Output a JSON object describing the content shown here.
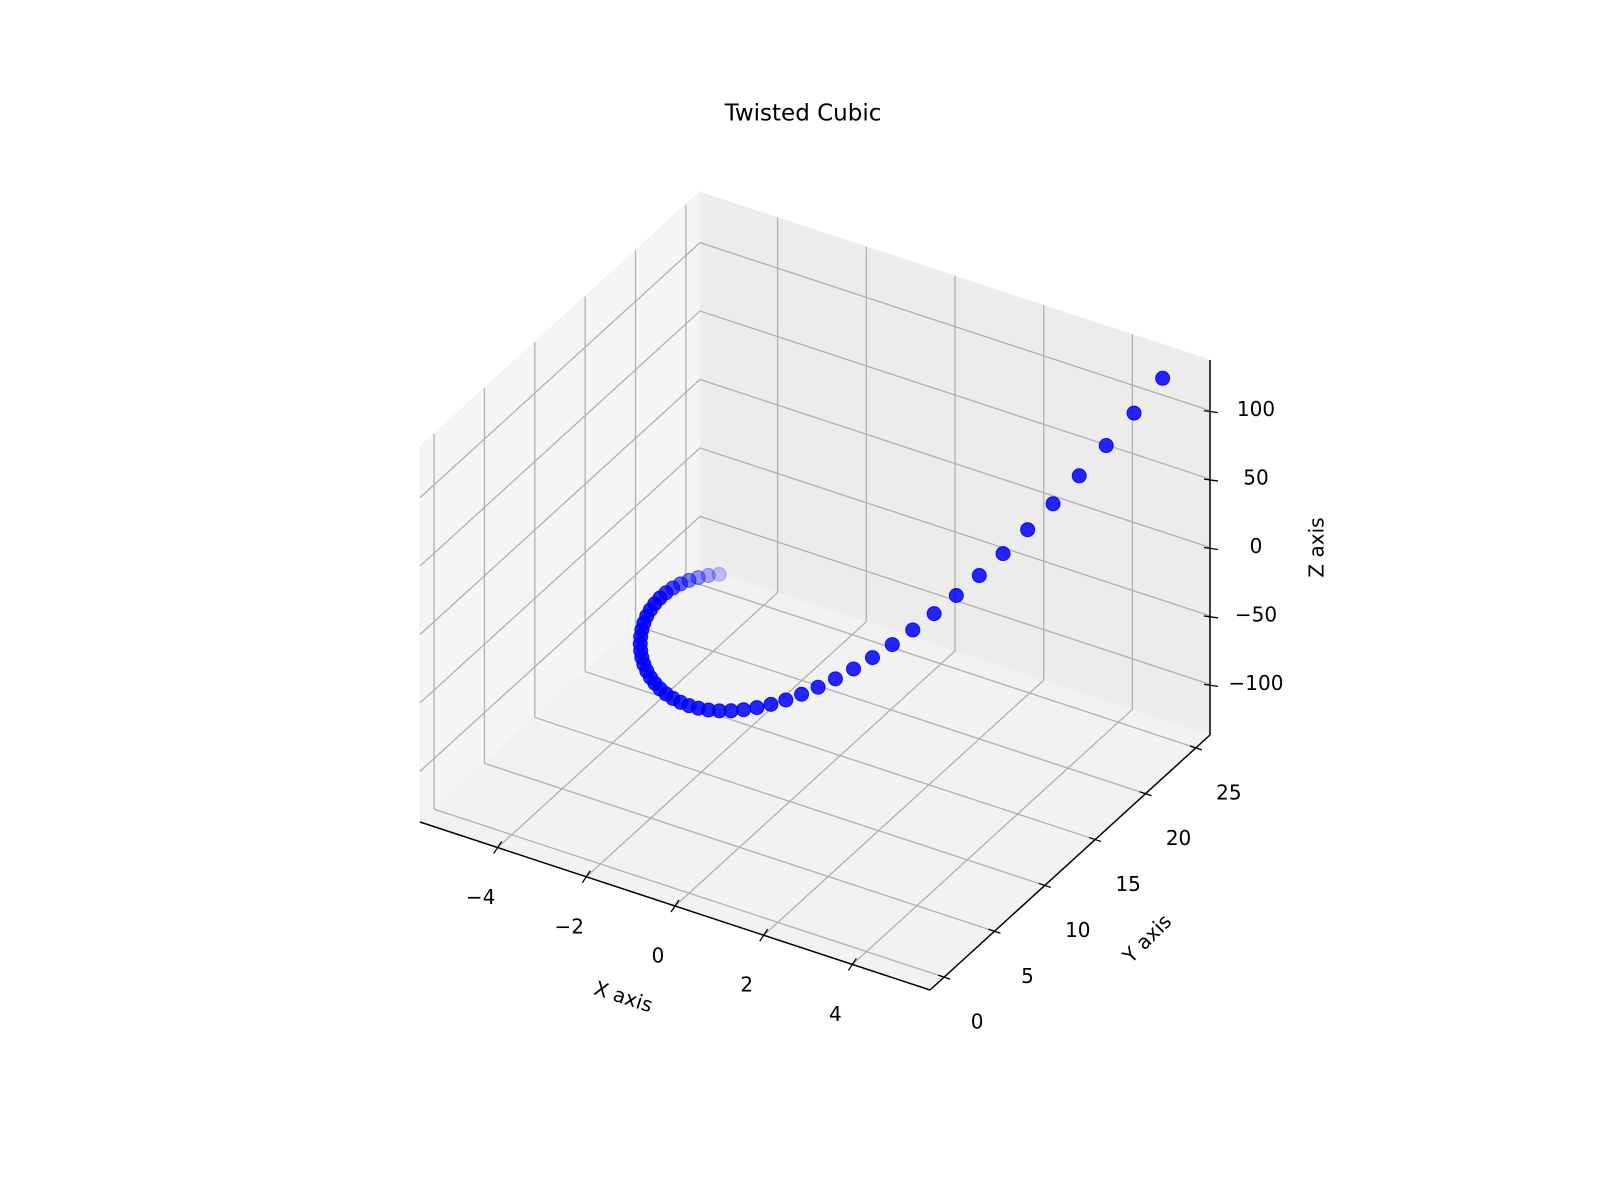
{
  "chart_data": {
    "type": "scatter3d",
    "title": "Twisted Cubic",
    "xlabel": "X axis",
    "ylabel": "Y axis",
    "zlabel": "Z axis",
    "series": [
      {
        "color": "#0000ff",
        "x": [
          -5,
          -4.8,
          -4.6,
          -4.4,
          -4.2,
          -4,
          -3.8,
          -3.6,
          -3.4,
          -3.2,
          -3,
          -2.8,
          -2.6,
          -2.4,
          -2.2,
          -2,
          -1.8,
          -1.6,
          -1.4,
          -1.2,
          -1,
          -0.8,
          -0.6,
          -0.4,
          -0.2,
          0,
          0.2,
          0.4,
          0.6,
          0.8,
          1,
          1.2,
          1.4,
          1.6,
          1.8,
          2,
          2.2,
          2.4,
          2.6,
          2.8,
          3,
          3.2,
          3.4,
          3.6,
          3.8,
          4,
          4.2,
          4.4,
          4.6,
          4.8,
          5
        ],
        "y": [
          25,
          23.04,
          21.16,
          19.36,
          17.64,
          16,
          14.44,
          12.96,
          11.56,
          10.24,
          9,
          7.84,
          6.76,
          5.76,
          4.84,
          4,
          3.24,
          2.56,
          1.96,
          1.44,
          1,
          0.64,
          0.36,
          0.16,
          0.04,
          0,
          0.04,
          0.16,
          0.36,
          0.64,
          1,
          1.44,
          1.96,
          2.56,
          3.24,
          4,
          4.84,
          5.76,
          6.76,
          7.84,
          9,
          10.24,
          11.56,
          12.96,
          14.44,
          16,
          17.64,
          19.36,
          21.16,
          23.04,
          25
        ],
        "z": [
          -125,
          -110.592,
          -97.336,
          -85.184,
          -74.088,
          -64,
          -54.872,
          -46.656,
          -39.304,
          -32.768,
          -27,
          -21.952,
          -17.576,
          -13.824,
          -10.648,
          -8,
          -5.832,
          -4.096,
          -2.744,
          -1.728,
          -1,
          -0.512,
          -0.216,
          -0.064,
          -0.008,
          0,
          0.008,
          0.064,
          0.216,
          0.512,
          1,
          1.728,
          2.744,
          4.096,
          5.832,
          8,
          10.648,
          13.824,
          17.576,
          21.952,
          27,
          32.768,
          39.304,
          46.656,
          54.872,
          64,
          74.088,
          85.184,
          97.336,
          110.592,
          125
        ]
      }
    ],
    "xlim": [
      -5.75,
      5.75
    ],
    "ylim": [
      -1.4,
      26.4
    ],
    "zlim": [
      -137,
      137
    ],
    "xticks": [
      {
        "value": -4,
        "label": "−4"
      },
      {
        "value": -2,
        "label": "−2"
      },
      0,
      2,
      4
    ],
    "yticks": [
      0,
      5,
      10,
      15,
      20,
      25
    ],
    "zticks": [
      {
        "value": -100,
        "label": "−100"
      },
      {
        "value": -50,
        "label": "−50"
      },
      0,
      50,
      100
    ],
    "grid": true
  }
}
